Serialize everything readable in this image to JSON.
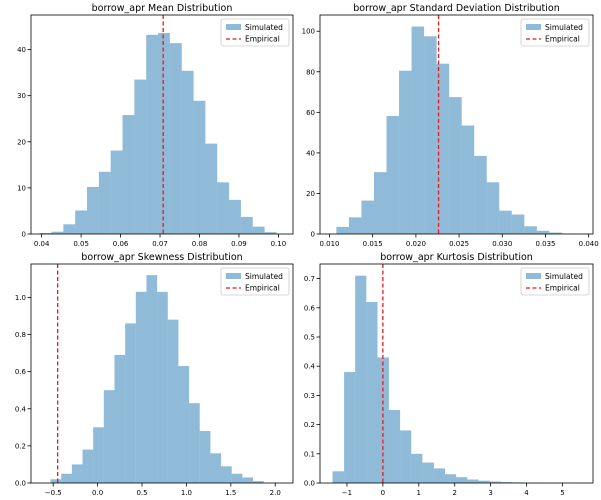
{
  "colors": {
    "bar": "#1f77b4",
    "empirical": "#e8191c",
    "axis": "#000000"
  },
  "chart_data": [
    {
      "type": "bar",
      "title": "borrow_apr Mean Distribution",
      "bin_edges": [
        0.0395,
        0.0425,
        0.0455,
        0.0485,
        0.0515,
        0.0545,
        0.0575,
        0.0605,
        0.0635,
        0.0665,
        0.0695,
        0.0725,
        0.0755,
        0.0785,
        0.0815,
        0.0845,
        0.0875,
        0.0905,
        0.0935,
        0.0965,
        0.0995
      ],
      "values": [
        0.2,
        0.5,
        2.1,
        5.1,
        10.2,
        13.5,
        18.1,
        25.8,
        33.5,
        43.2,
        43.6,
        41.4,
        35.4,
        28.9,
        19.6,
        11.2,
        7.4,
        3.7,
        1.6,
        0.4
      ],
      "empirical": 0.0708,
      "xlim": [
        0.0373,
        0.1037
      ],
      "ylim": [
        0,
        47.5
      ],
      "xticks": [
        0.04,
        0.05,
        0.06,
        0.07,
        0.08,
        0.09,
        0.1
      ],
      "xtick_labels": [
        "0.04",
        "0.05",
        "0.06",
        "0.07",
        "0.08",
        "0.09",
        "0.10"
      ],
      "yticks": [
        0,
        10,
        20,
        30,
        40
      ],
      "ytick_labels": [
        "0",
        "10",
        "20",
        "30",
        "40"
      ],
      "legend": [
        "Simulated",
        "Empirical"
      ],
      "legend_loc": "upper right"
    },
    {
      "type": "bar",
      "title": "borrow_apr Standard Deviation Distribution",
      "bin_edges": [
        0.0108,
        0.01225,
        0.0137,
        0.01515,
        0.0166,
        0.01805,
        0.0195,
        0.02095,
        0.0224,
        0.02385,
        0.0253,
        0.02675,
        0.0282,
        0.02965,
        0.0311,
        0.03255,
        0.034,
        0.03545,
        0.0369,
        0.03835
      ],
      "values": [
        3.5,
        8.2,
        16.5,
        30.5,
        58.2,
        80.5,
        102.3,
        97.5,
        84.0,
        67.5,
        53.5,
        38.5,
        25.5,
        11.5,
        9.6,
        3.8,
        1.6,
        0.7,
        0.1
      ],
      "empirical": 0.02262,
      "xlim": [
        0.0089,
        0.0405
      ],
      "ylim": [
        0,
        108
      ],
      "xticks": [
        0.01,
        0.015,
        0.02,
        0.025,
        0.03,
        0.035,
        0.04
      ],
      "xtick_labels": [
        "0.010",
        "0.015",
        "0.020",
        "0.025",
        "0.030",
        "0.035",
        "0.040"
      ],
      "yticks": [
        0,
        20,
        40,
        60,
        80,
        100
      ],
      "ytick_labels": [
        "0",
        "20",
        "40",
        "60",
        "80",
        "100"
      ],
      "legend": [
        "Simulated",
        "Empirical"
      ],
      "legend_loc": "upper right"
    },
    {
      "type": "bar",
      "title": "borrow_apr Skewness Distribution",
      "bin_edges": [
        -0.53,
        -0.41,
        -0.29,
        -0.17,
        -0.05,
        0.07,
        0.19,
        0.31,
        0.43,
        0.55,
        0.67,
        0.79,
        0.91,
        1.03,
        1.15,
        1.27,
        1.39,
        1.51,
        1.63,
        1.75,
        1.87
      ],
      "values": [
        0.02,
        0.05,
        0.1,
        0.18,
        0.3,
        0.5,
        0.69,
        0.86,
        1.03,
        1.12,
        1.03,
        0.88,
        0.63,
        0.43,
        0.28,
        0.16,
        0.09,
        0.05,
        0.03,
        0.01
      ],
      "empirical": -0.45,
      "xlim": [
        -0.75,
        2.2
      ],
      "ylim": [
        0,
        1.18
      ],
      "xticks": [
        -0.5,
        0,
        0.5,
        1,
        1.5,
        2
      ],
      "xtick_labels": [
        "−0.5",
        "0.0",
        "0.5",
        "1.0",
        "1.5",
        "2.0"
      ],
      "yticks": [
        0,
        0.2,
        0.4,
        0.6,
        0.8,
        1.0
      ],
      "ytick_labels": [
        "0.0",
        "0.2",
        "0.4",
        "0.6",
        "0.8",
        "1.0"
      ],
      "legend": [
        "Simulated",
        "Empirical"
      ],
      "legend_loc": "upper right"
    },
    {
      "type": "bar",
      "title": "borrow_apr Kurtosis Distribution",
      "bin_edges": [
        -1.4,
        -1.08,
        -0.77,
        -0.46,
        -0.15,
        0.17,
        0.48,
        0.79,
        1.1,
        1.42,
        1.73,
        2.04,
        2.35,
        2.66,
        2.98,
        3.29,
        3.6,
        3.91,
        4.23,
        4.54,
        4.85,
        5.16,
        5.47
      ],
      "values": [
        0.04,
        0.38,
        0.71,
        0.62,
        0.43,
        0.25,
        0.18,
        0.1,
        0.07,
        0.05,
        0.03,
        0.02,
        0.012,
        0.008,
        0.005,
        0.003,
        0.002,
        0.001,
        0.001,
        0.0005,
        0.0005,
        0.0003
      ],
      "empirical": 0.0,
      "xlim": [
        -1.75,
        5.85
      ],
      "ylim": [
        0,
        0.75
      ],
      "xticks": [
        -1,
        0,
        1,
        2,
        3,
        4,
        5
      ],
      "xtick_labels": [
        "−1",
        "0",
        "1",
        "2",
        "3",
        "4",
        "5"
      ],
      "yticks": [
        0,
        0.1,
        0.2,
        0.3,
        0.4,
        0.5,
        0.6,
        0.7
      ],
      "ytick_labels": [
        "0.0",
        "0.1",
        "0.2",
        "0.3",
        "0.4",
        "0.5",
        "0.6",
        "0.7"
      ],
      "legend": [
        "Simulated",
        "Empirical"
      ],
      "legend_loc": "upper right"
    }
  ]
}
